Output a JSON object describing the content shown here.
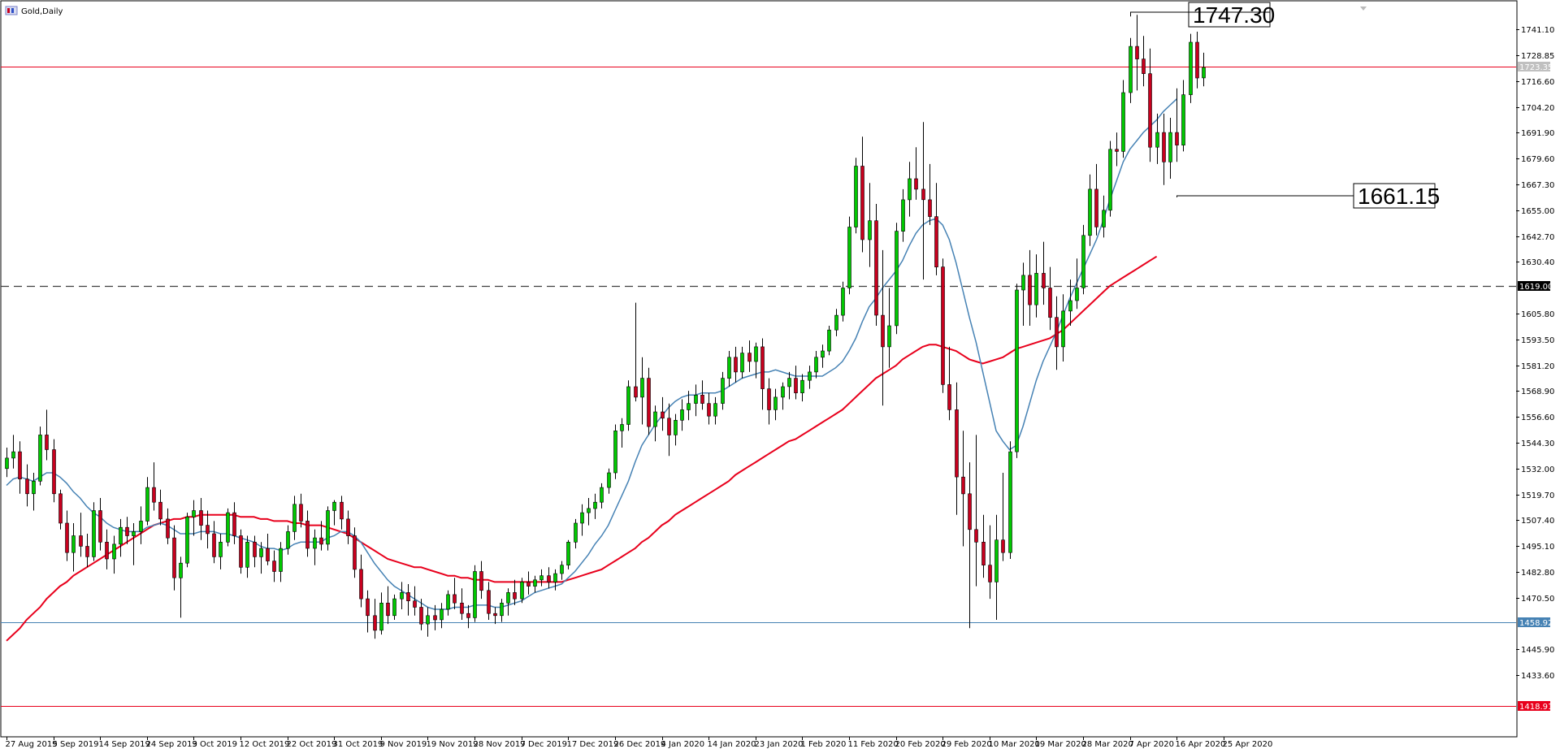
{
  "chart_data": {
    "type": "candlestick",
    "title": "Gold,Daily",
    "ylim": [
      1407.0,
      1752.0
    ],
    "y_ticks": [
      "1741.10",
      "1728.85",
      "1716.60",
      "1704.20",
      "1691.90",
      "1679.60",
      "1667.30",
      "1655.00",
      "1642.70",
      "1630.40",
      "1605.80",
      "1593.50",
      "1581.20",
      "1568.90",
      "1556.60",
      "1544.30",
      "1532.00",
      "1519.70",
      "1507.40",
      "1495.10",
      "1482.80",
      "1470.50",
      "1445.90",
      "1433.60"
    ],
    "x_tick_labels": [
      "27 Aug 2019",
      "5 Sep 2019",
      "14 Sep 2019",
      "24 Sep 2019",
      "3 Oct 2019",
      "12 Oct 2019",
      "22 Oct 2019",
      "31 Oct 2019",
      "9 Nov 2019",
      "19 Nov 2019",
      "28 Nov 2019",
      "7 Dec 2019",
      "17 Dec 2019",
      "26 Dec 2019",
      "4 Jan 2020",
      "14 Jan 2020",
      "23 Jan 2020",
      "1 Feb 2020",
      "11 Feb 2020",
      "20 Feb 2020",
      "29 Feb 2020",
      "10 Mar 2020",
      "19 Mar 2020",
      "28 Mar 2020",
      "7 Apr 2020",
      "16 Apr 2020",
      "25 Apr 2020"
    ],
    "x_tick_index": [
      0,
      7,
      14,
      21,
      28,
      35,
      42,
      49,
      56,
      63,
      70,
      77,
      84,
      91,
      98,
      105,
      112,
      119,
      126,
      133,
      140,
      147,
      154,
      161,
      168,
      175,
      182
    ],
    "horizontal_lines": [
      {
        "value": 1723.35,
        "label": "1723.35",
        "style": "solid",
        "color": "#e8001c"
      },
      {
        "value": 1619.0,
        "label": "1619.00",
        "style": "dashed",
        "color": "#404040"
      },
      {
        "value": 1458.92,
        "label": "1458.92",
        "style": "solid",
        "color": "#4682b4"
      },
      {
        "value": 1418.91,
        "label": "1418.91",
        "style": "solid",
        "color": "#e8001c"
      }
    ],
    "annotations": [
      {
        "text": "1747.30",
        "value": 1747.3,
        "index": 168
      },
      {
        "text": "1661.15",
        "value": 1661.15,
        "index": 175
      }
    ],
    "series": [
      {
        "name": "",
        "type": "candles"
      },
      {
        "name": "",
        "type": "ma-short",
        "color": "#4682b4"
      },
      {
        "name": "",
        "type": "ma-long",
        "color": "#e8001c"
      }
    ],
    "bull_color": "#00c800",
    "bear_color": "#c8001e",
    "candles": [
      [
        1532,
        1542,
        1528,
        1537
      ],
      [
        1537,
        1548,
        1532,
        1540
      ],
      [
        1540,
        1545,
        1520,
        1527
      ],
      [
        1527,
        1534,
        1514,
        1520
      ],
      [
        1520,
        1530,
        1512,
        1526
      ],
      [
        1526,
        1552,
        1524,
        1548
      ],
      [
        1548,
        1560,
        1536,
        1541
      ],
      [
        1541,
        1546,
        1516,
        1520
      ],
      [
        1520,
        1522,
        1503,
        1506
      ],
      [
        1506,
        1512,
        1488,
        1492
      ],
      [
        1492,
        1506,
        1483,
        1500
      ],
      [
        1500,
        1511,
        1490,
        1495
      ],
      [
        1495,
        1501,
        1485,
        1490
      ],
      [
        1490,
        1516,
        1488,
        1512
      ],
      [
        1512,
        1518,
        1493,
        1497
      ],
      [
        1497,
        1503,
        1484,
        1489
      ],
      [
        1489,
        1500,
        1482,
        1496
      ],
      [
        1496,
        1508,
        1490,
        1504
      ],
      [
        1504,
        1509,
        1496,
        1500
      ],
      [
        1500,
        1506,
        1486,
        1502
      ],
      [
        1502,
        1514,
        1496,
        1507
      ],
      [
        1507,
        1528,
        1505,
        1523
      ],
      [
        1523,
        1535,
        1512,
        1516
      ],
      [
        1516,
        1522,
        1505,
        1508
      ],
      [
        1508,
        1513,
        1496,
        1499
      ],
      [
        1499,
        1505,
        1474,
        1480
      ],
      [
        1480,
        1490,
        1461,
        1487
      ],
      [
        1487,
        1511,
        1485,
        1509
      ],
      [
        1509,
        1517,
        1500,
        1512
      ],
      [
        1512,
        1518,
        1498,
        1505
      ],
      [
        1505,
        1512,
        1494,
        1501
      ],
      [
        1501,
        1507,
        1487,
        1490
      ],
      [
        1490,
        1501,
        1484,
        1497
      ],
      [
        1497,
        1513,
        1495,
        1511
      ],
      [
        1511,
        1516,
        1496,
        1500
      ],
      [
        1500,
        1503,
        1482,
        1485
      ],
      [
        1485,
        1500,
        1480,
        1497
      ],
      [
        1497,
        1500,
        1485,
        1490
      ],
      [
        1490,
        1497,
        1482,
        1494
      ],
      [
        1494,
        1501,
        1486,
        1488
      ],
      [
        1488,
        1493,
        1478,
        1483
      ],
      [
        1483,
        1497,
        1478,
        1494
      ],
      [
        1494,
        1505,
        1491,
        1502
      ],
      [
        1502,
        1519,
        1498,
        1515
      ],
      [
        1515,
        1520,
        1504,
        1507
      ],
      [
        1507,
        1512,
        1490,
        1494
      ],
      [
        1494,
        1503,
        1486,
        1499
      ],
      [
        1499,
        1507,
        1493,
        1496
      ],
      [
        1496,
        1514,
        1493,
        1512
      ],
      [
        1512,
        1517,
        1505,
        1516
      ],
      [
        1516,
        1519,
        1503,
        1508
      ],
      [
        1508,
        1512,
        1496,
        1500
      ],
      [
        1500,
        1504,
        1480,
        1484
      ],
      [
        1484,
        1491,
        1466,
        1470
      ],
      [
        1470,
        1474,
        1454,
        1462
      ],
      [
        1462,
        1470,
        1451,
        1455
      ],
      [
        1455,
        1473,
        1453,
        1468
      ],
      [
        1468,
        1476,
        1458,
        1462
      ],
      [
        1462,
        1472,
        1460,
        1470
      ],
      [
        1470,
        1478,
        1465,
        1473
      ],
      [
        1473,
        1477,
        1462,
        1469
      ],
      [
        1469,
        1476,
        1462,
        1466
      ],
      [
        1466,
        1470,
        1455,
        1458
      ],
      [
        1458,
        1466,
        1452,
        1462
      ],
      [
        1462,
        1467,
        1455,
        1460
      ],
      [
        1460,
        1468,
        1456,
        1465
      ],
      [
        1465,
        1474,
        1462,
        1472
      ],
      [
        1472,
        1480,
        1465,
        1468
      ],
      [
        1468,
        1475,
        1460,
        1463
      ],
      [
        1463,
        1467,
        1456,
        1461
      ],
      [
        1461,
        1486,
        1459,
        1483
      ],
      [
        1483,
        1488,
        1470,
        1474
      ],
      [
        1474,
        1478,
        1460,
        1463
      ],
      [
        1463,
        1466,
        1458,
        1462
      ],
      [
        1462,
        1470,
        1459,
        1468
      ],
      [
        1468,
        1475,
        1462,
        1473
      ],
      [
        1473,
        1479,
        1467,
        1470
      ],
      [
        1470,
        1480,
        1468,
        1478
      ],
      [
        1478,
        1483,
        1472,
        1476
      ],
      [
        1476,
        1481,
        1473,
        1479
      ],
      [
        1479,
        1484,
        1476,
        1481
      ],
      [
        1481,
        1485,
        1475,
        1478
      ],
      [
        1478,
        1484,
        1474,
        1482
      ],
      [
        1482,
        1488,
        1479,
        1486
      ],
      [
        1486,
        1498,
        1484,
        1497
      ],
      [
        1497,
        1508,
        1494,
        1506
      ],
      [
        1506,
        1515,
        1500,
        1511
      ],
      [
        1511,
        1518,
        1505,
        1513
      ],
      [
        1513,
        1520,
        1508,
        1516
      ],
      [
        1516,
        1525,
        1513,
        1523
      ],
      [
        1523,
        1532,
        1520,
        1530
      ],
      [
        1530,
        1553,
        1527,
        1550
      ],
      [
        1550,
        1556,
        1542,
        1553
      ],
      [
        1553,
        1574,
        1550,
        1571
      ],
      [
        1571,
        1611,
        1564,
        1566
      ],
      [
        1566,
        1585,
        1553,
        1575
      ],
      [
        1575,
        1580,
        1548,
        1552
      ],
      [
        1552,
        1562,
        1545,
        1559
      ],
      [
        1559,
        1566,
        1550,
        1556
      ],
      [
        1556,
        1563,
        1538,
        1548
      ],
      [
        1548,
        1558,
        1543,
        1555
      ],
      [
        1555,
        1565,
        1550,
        1560
      ],
      [
        1560,
        1569,
        1555,
        1563
      ],
      [
        1563,
        1572,
        1557,
        1567
      ],
      [
        1567,
        1574,
        1560,
        1563
      ],
      [
        1563,
        1568,
        1553,
        1557
      ],
      [
        1557,
        1566,
        1553,
        1563
      ],
      [
        1563,
        1578,
        1560,
        1575
      ],
      [
        1575,
        1588,
        1571,
        1585
      ],
      [
        1585,
        1590,
        1573,
        1578
      ],
      [
        1578,
        1590,
        1575,
        1587
      ],
      [
        1587,
        1593,
        1578,
        1583
      ],
      [
        1583,
        1592,
        1575,
        1590
      ],
      [
        1590,
        1594,
        1560,
        1570
      ],
      [
        1570,
        1575,
        1553,
        1560
      ],
      [
        1560,
        1570,
        1555,
        1566
      ],
      [
        1566,
        1573,
        1560,
        1571
      ],
      [
        1571,
        1578,
        1565,
        1575
      ],
      [
        1575,
        1581,
        1565,
        1568
      ],
      [
        1568,
        1577,
        1564,
        1574
      ],
      [
        1574,
        1581,
        1570,
        1578
      ],
      [
        1578,
        1588,
        1575,
        1585
      ],
      [
        1585,
        1591,
        1580,
        1588
      ],
      [
        1588,
        1600,
        1586,
        1598
      ],
      [
        1598,
        1608,
        1595,
        1605
      ],
      [
        1605,
        1621,
        1602,
        1618
      ],
      [
        1618,
        1652,
        1615,
        1647
      ],
      [
        1647,
        1680,
        1644,
        1676
      ],
      [
        1676,
        1690,
        1635,
        1641
      ],
      [
        1641,
        1668,
        1628,
        1650
      ],
      [
        1650,
        1658,
        1600,
        1605
      ],
      [
        1605,
        1636,
        1562,
        1590
      ],
      [
        1590,
        1618,
        1580,
        1600
      ],
      [
        1600,
        1649,
        1596,
        1645
      ],
      [
        1645,
        1665,
        1640,
        1660
      ],
      [
        1660,
        1678,
        1652,
        1670
      ],
      [
        1670,
        1685,
        1660,
        1665
      ],
      [
        1665,
        1697,
        1622,
        1660
      ],
      [
        1660,
        1677,
        1648,
        1652
      ],
      [
        1652,
        1668,
        1624,
        1628
      ],
      [
        1628,
        1632,
        1568,
        1572
      ],
      [
        1572,
        1590,
        1555,
        1560
      ],
      [
        1560,
        1573,
        1510,
        1528
      ],
      [
        1528,
        1550,
        1495,
        1520
      ],
      [
        1520,
        1535,
        1456,
        1503
      ],
      [
        1503,
        1548,
        1476,
        1497
      ],
      [
        1497,
        1510,
        1480,
        1486
      ],
      [
        1486,
        1505,
        1470,
        1478
      ],
      [
        1478,
        1510,
        1460,
        1498
      ],
      [
        1498,
        1530,
        1488,
        1492
      ],
      [
        1492,
        1545,
        1489,
        1540
      ],
      [
        1540,
        1620,
        1537,
        1617
      ],
      [
        1617,
        1630,
        1600,
        1624
      ],
      [
        1624,
        1636,
        1600,
        1610
      ],
      [
        1610,
        1634,
        1604,
        1625
      ],
      [
        1625,
        1640,
        1610,
        1618
      ],
      [
        1618,
        1628,
        1598,
        1604
      ],
      [
        1604,
        1614,
        1579,
        1590
      ],
      [
        1590,
        1615,
        1583,
        1607
      ],
      [
        1607,
        1622,
        1600,
        1612
      ],
      [
        1612,
        1632,
        1608,
        1618
      ],
      [
        1618,
        1648,
        1615,
        1643
      ],
      [
        1643,
        1672,
        1638,
        1665
      ],
      [
        1665,
        1677,
        1643,
        1647
      ],
      [
        1647,
        1662,
        1642,
        1655
      ],
      [
        1655,
        1688,
        1652,
        1684
      ],
      [
        1684,
        1692,
        1676,
        1683
      ],
      [
        1683,
        1717,
        1680,
        1711
      ],
      [
        1711,
        1737,
        1706,
        1733
      ],
      [
        1733,
        1748,
        1712,
        1727
      ],
      [
        1727,
        1738,
        1714,
        1720
      ],
      [
        1720,
        1732,
        1678,
        1685
      ],
      [
        1685,
        1701,
        1677,
        1692
      ],
      [
        1692,
        1701,
        1667,
        1678
      ],
      [
        1678,
        1699,
        1670,
        1692
      ],
      [
        1692,
        1713,
        1678,
        1686
      ],
      [
        1686,
        1717,
        1683,
        1710
      ],
      [
        1710,
        1739,
        1706,
        1735
      ],
      [
        1735,
        1740,
        1713,
        1718
      ],
      [
        1718,
        1730,
        1714,
        1723
      ]
    ],
    "ma_short": [
      1524,
      1527,
      1528,
      1527,
      1526,
      1528,
      1530,
      1530,
      1528,
      1525,
      1521,
      1518,
      1514,
      1511,
      1509,
      1506,
      1504,
      1503,
      1502,
      1502,
      1502,
      1504,
      1505,
      1506,
      1505,
      1503,
      1501,
      1501,
      1501,
      1502,
      1502,
      1502,
      1501,
      1501,
      1500,
      1499,
      1498,
      1497,
      1495,
      1494,
      1494,
      1493,
      1494,
      1496,
      1497,
      1497,
      1497,
      1497,
      1499,
      1500,
      1502,
      1502,
      1500,
      1497,
      1492,
      1487,
      1483,
      1479,
      1476,
      1474,
      1472,
      1470,
      1468,
      1466,
      1465,
      1465,
      1465,
      1466,
      1466,
      1466,
      1467,
      1467,
      1467,
      1466,
      1466,
      1467,
      1468,
      1469,
      1471,
      1473,
      1474,
      1475,
      1476,
      1477,
      1480,
      1483,
      1487,
      1491,
      1496,
      1500,
      1505,
      1512,
      1519,
      1526,
      1535,
      1543,
      1548,
      1553,
      1557,
      1561,
      1564,
      1566,
      1567,
      1567,
      1568,
      1568,
      1568,
      1569,
      1571,
      1573,
      1575,
      1576,
      1577,
      1578,
      1578,
      1579,
      1578,
      1577,
      1576,
      1576,
      1576,
      1576,
      1576,
      1578,
      1580,
      1583,
      1588,
      1594,
      1602,
      1609,
      1613,
      1618,
      1622,
      1626,
      1631,
      1638,
      1644,
      1648,
      1650,
      1651,
      1648,
      1641,
      1630,
      1617,
      1604,
      1592,
      1578,
      1564,
      1550,
      1545,
      1541,
      1543,
      1552,
      1563,
      1574,
      1583,
      1590,
      1597,
      1605,
      1613,
      1620,
      1627,
      1634,
      1641,
      1650,
      1660,
      1669,
      1678,
      1684,
      1688,
      1692,
      1695,
      1698,
      1702,
      1705,
      1708
    ],
    "ma_long": [
      1450,
      1453,
      1456,
      1460,
      1463,
      1466,
      1470,
      1473,
      1476,
      1478,
      1481,
      1483,
      1485,
      1487,
      1489,
      1491,
      1493,
      1495,
      1497,
      1499,
      1501,
      1503,
      1505,
      1506,
      1507,
      1508,
      1508,
      1509,
      1509,
      1510,
      1510,
      1510,
      1510,
      1510,
      1510,
      1509,
      1509,
      1509,
      1508,
      1508,
      1507,
      1507,
      1507,
      1506,
      1506,
      1505,
      1505,
      1505,
      1504,
      1503,
      1502,
      1501,
      1499,
      1497,
      1495,
      1493,
      1491,
      1489,
      1488,
      1487,
      1486,
      1485,
      1485,
      1484,
      1483,
      1482,
      1481,
      1481,
      1480,
      1480,
      1479,
      1479,
      1479,
      1478,
      1478,
      1478,
      1478,
      1478,
      1478,
      1478,
      1478,
      1478,
      1478,
      1478,
      1479,
      1480,
      1481,
      1482,
      1483,
      1484,
      1486,
      1488,
      1490,
      1492,
      1494,
      1497,
      1499,
      1502,
      1505,
      1507,
      1510,
      1512,
      1514,
      1516,
      1518,
      1520,
      1522,
      1524,
      1526,
      1529,
      1531,
      1533,
      1535,
      1537,
      1539,
      1541,
      1543,
      1545,
      1546,
      1548,
      1550,
      1552,
      1554,
      1556,
      1558,
      1560,
      1563,
      1566,
      1569,
      1572,
      1575,
      1577,
      1579,
      1581,
      1584,
      1586,
      1588,
      1590,
      1591,
      1591,
      1590,
      1589,
      1588,
      1586,
      1584,
      1583,
      1582,
      1583,
      1584,
      1585,
      1587,
      1589,
      1590,
      1591,
      1592,
      1593,
      1594,
      1596,
      1598,
      1601,
      1604,
      1607,
      1610,
      1613,
      1616,
      1619,
      1621,
      1623,
      1625,
      1627,
      1629,
      1631,
      1633
    ]
  }
}
